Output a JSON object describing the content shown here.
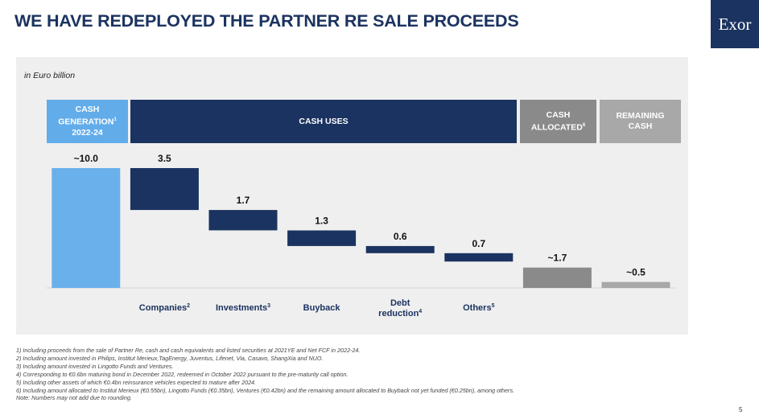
{
  "title": "WE HAVE REDEPLOYED THE PARTNER RE SALE PROCEEDS",
  "logo": "Exor",
  "unit": "in Euro billion",
  "headers": {
    "generation_lines": [
      "CASH",
      "GENERATION",
      "2022-24"
    ],
    "generation_sup": "1",
    "uses": "CASH USES",
    "allocated_lines": [
      "CASH",
      "ALLOCATED"
    ],
    "allocated_sup": "6",
    "remaining_lines": [
      "REMAINING",
      "CASH"
    ]
  },
  "colors": {
    "title": "#1b3360",
    "navy": "#1b3360",
    "light_blue": "#6ab0ea",
    "header_light_blue": "#62acea",
    "dark_grey": "#8a8a8a",
    "light_grey": "#a8a8a8",
    "panel": "#efefef"
  },
  "chart_data": {
    "type": "waterfall",
    "unit": "Euro billion",
    "categories": [
      {
        "label_lines": [
          ""
        ],
        "sup": "",
        "value": 10.0,
        "value_label": "~10.0",
        "kind": "total"
      },
      {
        "label_lines": [
          "Companies"
        ],
        "sup": "2",
        "value": 3.5,
        "value_label": "3.5",
        "kind": "use"
      },
      {
        "label_lines": [
          "Investments"
        ],
        "sup": "3",
        "value": 1.7,
        "value_label": "1.7",
        "kind": "use"
      },
      {
        "label_lines": [
          "Buyback"
        ],
        "sup": "",
        "value": 1.3,
        "value_label": "1.3",
        "kind": "use"
      },
      {
        "label_lines": [
          "Debt",
          "reduction"
        ],
        "sup": "4",
        "value": 0.6,
        "value_label": "0.6",
        "kind": "use"
      },
      {
        "label_lines": [
          "Others"
        ],
        "sup": "5",
        "value": 0.7,
        "value_label": "0.7",
        "kind": "use"
      },
      {
        "label_lines": [
          ""
        ],
        "sup": "",
        "value": 1.7,
        "value_label": "~1.7",
        "kind": "allocated"
      },
      {
        "label_lines": [
          ""
        ],
        "sup": "",
        "value": 0.5,
        "value_label": "~0.5",
        "kind": "remaining"
      }
    ]
  },
  "footnotes": [
    "1) Including proceeds from the sale of Partner Re, cash and cash equivalents and listed securities at 2021YE and Net FCF in 2022-24.",
    "2) Including amount invested in Philips, Institut Merieux,TagEnergy, Juventus, Lifenet, Via, Casavo, ShangXia and NUO.",
    "3) Including amount invested in Lingotto Funds and Ventures.",
    "4) Corresponding to €0.6bn maturing bond in December 2022, redeemed in October 2022 pursuant to the pre-maturity call option.",
    "5) Including other assets of which €0.4bn reinsurance vehicles expected to mature after 2024.",
    "6) Including amount allocated to Institut Merieux (€0.55bn), Lingotto Funds (€0.35bn), Ventures (€0.42bn) and the remaining amount allocated to Buyback not yet funded (€0.25bn), among others.",
    "Note: Numbers may not add due to rounding."
  ],
  "page_number": "5"
}
